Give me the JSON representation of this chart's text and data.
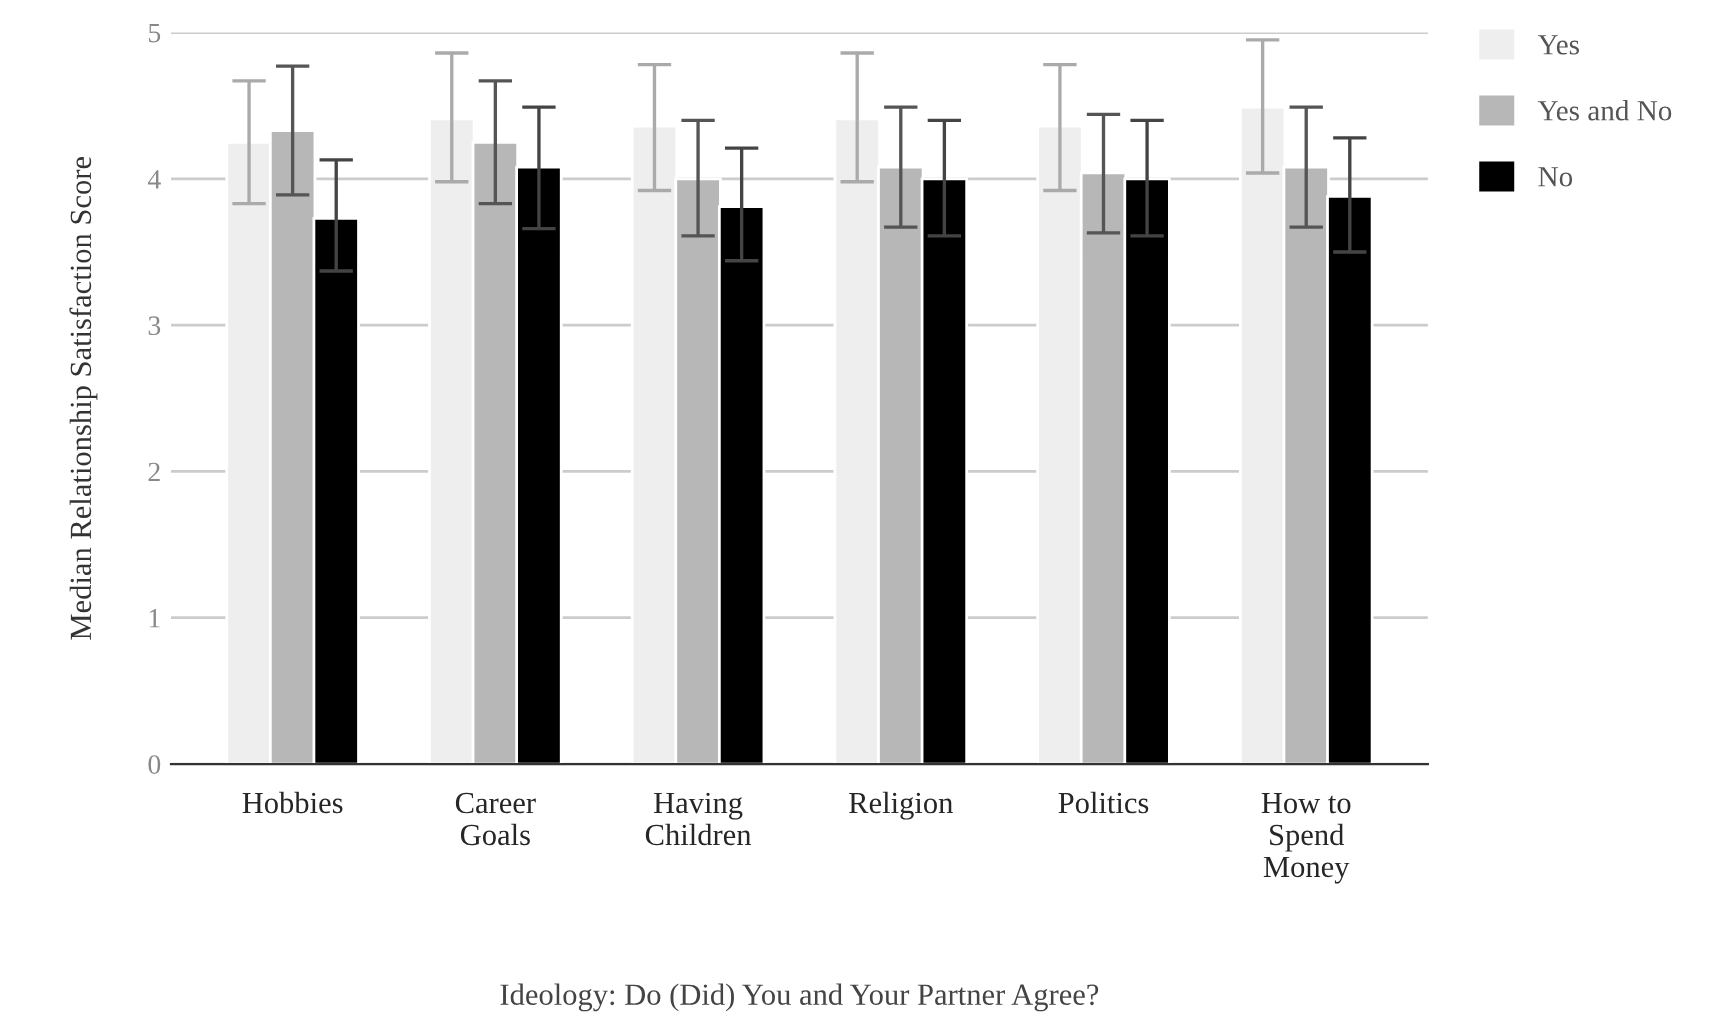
{
  "chart_data": {
    "type": "bar",
    "xlabel": "Ideology: Do (Did) You and Your Partner Agree?",
    "ylabel": "Median Relationship Satisfaction Score",
    "categories": [
      "Hobbies",
      "Career\nGoals",
      "Having\nChildren",
      "Religion",
      "Politics",
      "How to\nSpend\nMoney"
    ],
    "series": [
      {
        "name": "Yes",
        "color": "#eeeeee",
        "values": [
          4.25,
          4.41,
          4.36,
          4.41,
          4.36,
          4.49
        ],
        "errors": [
          [
            3.83,
            4.67
          ],
          [
            3.98,
            4.86
          ],
          [
            3.92,
            4.78
          ],
          [
            3.98,
            4.86
          ],
          [
            3.92,
            4.78
          ],
          [
            4.04,
            4.95
          ]
        ]
      },
      {
        "name": "Yes and No",
        "color": "#b7b7b7",
        "values": [
          4.33,
          4.25,
          4.0,
          4.08,
          4.04,
          4.08
        ],
        "errors": [
          [
            3.89,
            4.77
          ],
          [
            3.83,
            4.67
          ],
          [
            3.61,
            4.4
          ],
          [
            3.67,
            4.49
          ],
          [
            3.63,
            4.44
          ],
          [
            3.67,
            4.49
          ]
        ]
      },
      {
        "name": "No",
        "color": "#000000",
        "values": [
          3.73,
          4.08,
          3.81,
          4.0,
          4.0,
          3.88
        ],
        "errors": [
          [
            3.37,
            4.13
          ],
          [
            3.66,
            4.49
          ],
          [
            3.44,
            4.21
          ],
          [
            3.61,
            4.4
          ],
          [
            3.61,
            4.4
          ],
          [
            3.5,
            4.28
          ]
        ]
      }
    ],
    "ylim": [
      0,
      5
    ],
    "yticks": [
      0,
      1,
      2,
      3,
      4,
      5
    ],
    "grid": "y",
    "legend": "top right"
  }
}
